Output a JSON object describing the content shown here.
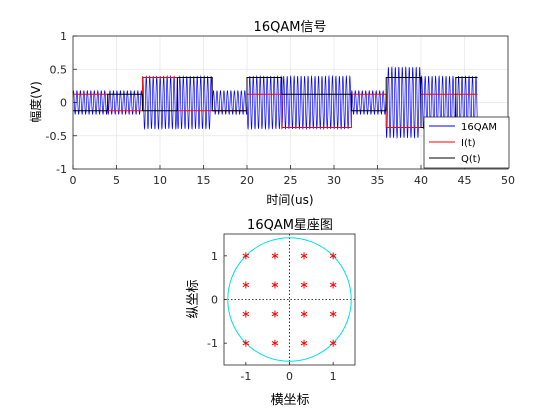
{
  "chart_data": [
    {
      "type": "line",
      "title": "16QAM信号",
      "xlabel": "时间(us)",
      "ylabel": "幅度(V)",
      "xlim": [
        0,
        50
      ],
      "ylim": [
        -1,
        1
      ],
      "xticks": [
        0,
        5,
        10,
        15,
        20,
        25,
        30,
        35,
        40,
        45,
        50
      ],
      "xtick_labels": [
        "0",
        "5",
        "10",
        "15",
        "20",
        "25",
        "30",
        "35",
        "40",
        "45",
        "50"
      ],
      "yticks": [
        -1,
        -0.5,
        0,
        0.5,
        1
      ],
      "ytick_labels": [
        "-1",
        "-0.5",
        "0",
        "0.5",
        "1"
      ],
      "grid": true,
      "legend_position": "bottom-right",
      "symbol_duration_us": 4,
      "carrier_period_us": 0.4,
      "series": [
        {
          "name": "16QAM",
          "color": "#0000ff",
          "style": "modulated carrier"
        },
        {
          "name": "I(t)",
          "color": "#ff0000",
          "style": "step",
          "x": [
            0,
            4,
            8,
            12,
            16,
            20,
            24,
            28,
            32,
            36,
            40,
            44,
            46.5
          ],
          "y": [
            0.125,
            -0.125,
            0.375,
            -0.125,
            -0.125,
            0.125,
            -0.375,
            -0.375,
            0.125,
            -0.375,
            0.125,
            0.125,
            0.125
          ]
        },
        {
          "name": "Q(t)",
          "color": "#000000",
          "style": "step",
          "x": [
            0,
            4,
            8,
            12,
            16,
            20,
            24,
            28,
            32,
            36,
            40,
            44,
            46.5
          ],
          "y": [
            -0.125,
            0.125,
            -0.125,
            0.375,
            -0.125,
            0.375,
            0.125,
            0.125,
            -0.125,
            0.375,
            -0.375,
            0.375,
            0.375
          ]
        }
      ]
    },
    {
      "type": "scatter",
      "title": "16QAM星座图",
      "xlabel": "横坐标",
      "ylabel": "纵坐标",
      "xlim": [
        -1.5,
        1.5
      ],
      "ylim": [
        -1.5,
        1.5
      ],
      "xticks": [
        -1,
        0,
        1
      ],
      "xtick_labels": [
        "-1",
        "0",
        "1"
      ],
      "yticks": [
        -1,
        0,
        1
      ],
      "ytick_labels": [
        "-1",
        "0",
        "1"
      ],
      "axis_lines": "dotted",
      "unit_circle": {
        "radius": 1.414,
        "color": "#00e0e0"
      },
      "marker": "*",
      "marker_color": "#ff0000",
      "points": [
        [
          -1,
          1
        ],
        [
          -0.333,
          1
        ],
        [
          0.333,
          1
        ],
        [
          1,
          1
        ],
        [
          -1,
          0.333
        ],
        [
          -0.333,
          0.333
        ],
        [
          0.333,
          0.333
        ],
        [
          1,
          0.333
        ],
        [
          -1,
          -0.333
        ],
        [
          -0.333,
          -0.333
        ],
        [
          0.333,
          -0.333
        ],
        [
          1,
          -0.333
        ],
        [
          -1,
          -1
        ],
        [
          -0.333,
          -1
        ],
        [
          0.333,
          -1
        ],
        [
          1,
          -1
        ]
      ]
    }
  ]
}
